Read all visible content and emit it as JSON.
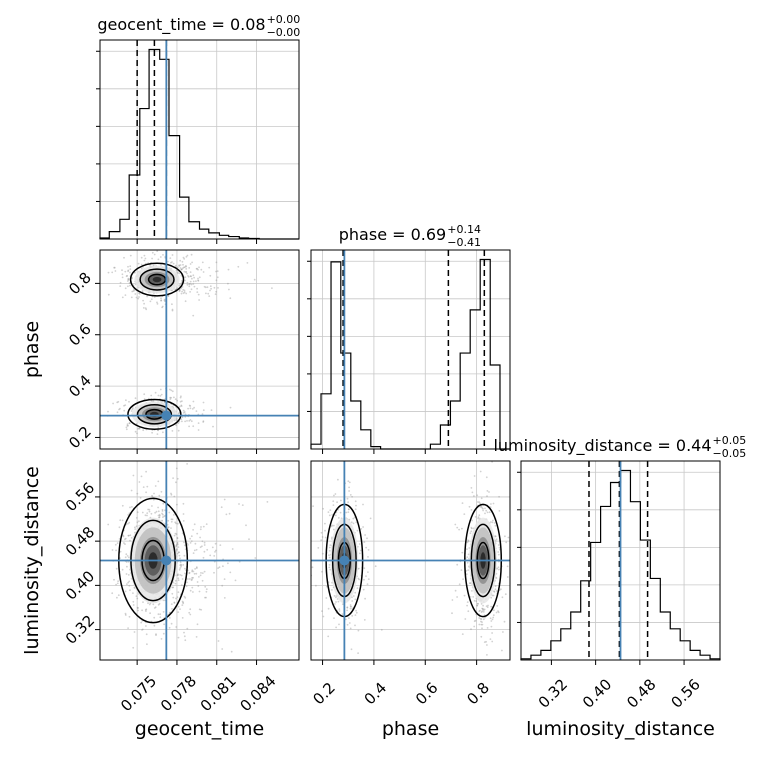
{
  "chart_data": {
    "type": "corner",
    "parameters": [
      "geocent_time",
      "phase",
      "luminosity_distance"
    ],
    "axis_labels": {
      "geocent_time": "geocent_time",
      "phase": "phase",
      "luminosity_distance": "luminosity_distance"
    },
    "axis_ranges": {
      "geocent_time": [
        0.0722,
        0.0872
      ],
      "phase": [
        0.155,
        0.93
      ],
      "luminosity_distance": [
        0.265,
        0.625
      ]
    },
    "ticks": {
      "geocent_time": [
        {
          "value": 0.075,
          "label": "0.075"
        },
        {
          "value": 0.078,
          "label": "0.078"
        },
        {
          "value": 0.081,
          "label": "0.081"
        },
        {
          "value": 0.084,
          "label": "0.084"
        }
      ],
      "phase": [
        {
          "value": 0.2,
          "label": "0.2"
        },
        {
          "value": 0.4,
          "label": "0.4"
        },
        {
          "value": 0.6,
          "label": "0.6"
        },
        {
          "value": 0.8,
          "label": "0.8"
        }
      ],
      "luminosity_distance": [
        {
          "value": 0.32,
          "label": "0.32"
        },
        {
          "value": 0.4,
          "label": "0.40"
        },
        {
          "value": 0.48,
          "label": "0.48"
        },
        {
          "value": 0.56,
          "label": "0.56"
        }
      ]
    },
    "titles": [
      {
        "param": "geocent_time",
        "main": "geocent_time = 0.08",
        "sup": "+0.00",
        "sub": "−0.00"
      },
      {
        "param": "phase",
        "main": "phase = 0.69",
        "sup": "+0.14",
        "sub": "−0.41"
      },
      {
        "param": "luminosity_distance",
        "main": "luminosity_distance = 0.44",
        "sup": "+0.05",
        "sub": "−0.05"
      }
    ],
    "truths": {
      "geocent_time": 0.0772,
      "phase": 0.285,
      "luminosity_distance": 0.445
    },
    "quantiles": {
      "geocent_time": [
        0.075,
        0.0763,
        0.0772
      ],
      "phase": [
        0.28,
        0.69,
        0.83
      ],
      "luminosity_distance": [
        0.388,
        0.443,
        0.494
      ]
    },
    "histograms": {
      "geocent_time": {
        "edges": [
          0.0722,
          0.0729,
          0.0737,
          0.0744,
          0.0752,
          0.0759,
          0.0767,
          0.0774,
          0.0782,
          0.0789,
          0.0797,
          0.0804,
          0.0812,
          0.0819,
          0.0827,
          0.0834,
          0.0842,
          0.0849,
          0.0857,
          0.0864,
          0.0872
        ],
        "counts": [
          0.4,
          3.0,
          8.0,
          26.0,
          53.0,
          77.0,
          73.0,
          42.0,
          17.0,
          7.0,
          4.0,
          2.5,
          1.5,
          1.0,
          0.4,
          0.2,
          0.0,
          0.0,
          0.0,
          0.0
        ]
      },
      "phase": {
        "edges": [
          0.155,
          0.194,
          0.233,
          0.271,
          0.31,
          0.349,
          0.388,
          0.426,
          0.465,
          0.504,
          0.543,
          0.581,
          0.62,
          0.659,
          0.698,
          0.736,
          0.775,
          0.814,
          0.853,
          0.891,
          0.93
        ],
        "counts": [
          2.0,
          23.0,
          78.0,
          40.0,
          20.0,
          8.0,
          1.0,
          0.0,
          0.0,
          0.0,
          0.0,
          0.0,
          2.0,
          10.0,
          20.0,
          40.0,
          58.0,
          79.0,
          35.0,
          0.0
        ]
      },
      "luminosity_distance": {
        "edges": [
          0.265,
          0.283,
          0.301,
          0.319,
          0.337,
          0.355,
          0.373,
          0.391,
          0.409,
          0.427,
          0.445,
          0.463,
          0.481,
          0.499,
          0.517,
          0.535,
          0.553,
          0.571,
          0.589,
          0.607,
          0.625
        ],
        "counts": [
          0.5,
          2.0,
          4.0,
          8.0,
          13.0,
          20.0,
          33.0,
          49.0,
          64.0,
          74.0,
          79.0,
          66.0,
          50.0,
          34.0,
          20.0,
          13.0,
          8.0,
          4.0,
          2.0,
          0.5
        ]
      }
    },
    "joint_2d": [
      {
        "x": "geocent_time",
        "y": "phase",
        "modes": [
          {
            "cx": 0.0765,
            "cy": 0.815,
            "sx": 0.0011,
            "sy": 0.035,
            "weight": 0.62
          },
          {
            "cx": 0.0763,
            "cy": 0.29,
            "sx": 0.0011,
            "sy": 0.032,
            "weight": 0.38
          }
        ],
        "contour_levels": [
          0.4,
          0.8,
          1.25
        ]
      },
      {
        "x": "geocent_time",
        "y": "luminosity_distance",
        "modes": [
          {
            "cx": 0.0762,
            "cy": 0.445,
            "sx": 0.00115,
            "sy": 0.05,
            "weight": 1.0
          }
        ],
        "contour_levels": [
          0.5,
          1.0,
          1.55
        ]
      },
      {
        "x": "phase",
        "y": "luminosity_distance",
        "modes": [
          {
            "cx": 0.285,
            "cy": 0.445,
            "sx": 0.035,
            "sy": 0.05,
            "weight": 0.45
          },
          {
            "cx": 0.825,
            "cy": 0.445,
            "sx": 0.035,
            "sy": 0.05,
            "weight": 0.55
          }
        ],
        "contour_levels": [
          0.45,
          0.9,
          1.4
        ]
      }
    ],
    "colors": {
      "truth": "#4682b4",
      "hist": "#000000",
      "grid": "#c8c8c8",
      "scatter": "#9a9a9a"
    },
    "grid": true
  }
}
